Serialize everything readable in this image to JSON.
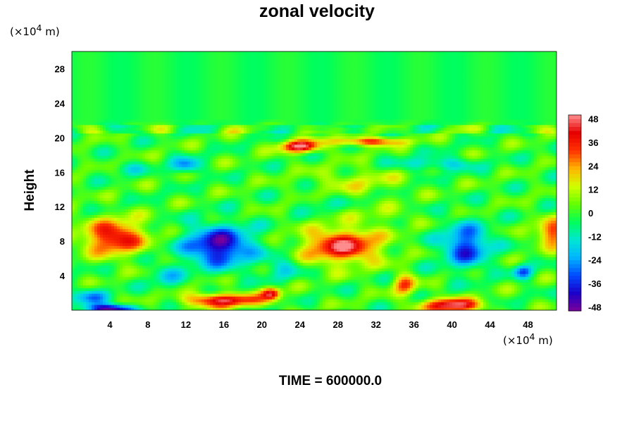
{
  "chart_data": {
    "type": "heatmap",
    "title": "zonal velocity",
    "ylabel": "Height",
    "xunit": "(×10",
    "xunit_exp": "4",
    "xunit_tail": " m)",
    "yunit": "(×10",
    "yunit_exp": "4",
    "yunit_tail": " m)",
    "footer": "TIME = 600000.0",
    "xlim": [
      0,
      51
    ],
    "ylim": [
      0,
      30
    ],
    "x_ticks": [
      4,
      8,
      12,
      16,
      20,
      24,
      28,
      32,
      36,
      40,
      44,
      48
    ],
    "y_ticks": [
      4,
      8,
      12,
      16,
      20,
      24,
      28
    ],
    "colorbar": {
      "range": [
        -50,
        50
      ],
      "ticks": [
        48,
        36,
        24,
        12,
        0,
        -12,
        -24,
        -36,
        -48
      ],
      "colors": [
        "#7b0099",
        "#1c00c8",
        "#004bff",
        "#00b4ff",
        "#00e6d2",
        "#00ff5a",
        "#64ff00",
        "#d2ff00",
        "#ffb400",
        "#ff3200",
        "#e60000",
        "#ff8c8c"
      ]
    },
    "features": [
      {
        "x": 4.5,
        "y": 8.5,
        "value": 42,
        "sx": 3.2,
        "sy": 2.0
      },
      {
        "x": 15.5,
        "y": 7.5,
        "value": -46,
        "sx": 3.5,
        "sy": 2.3
      },
      {
        "x": 28.5,
        "y": 7.5,
        "value": 44,
        "sx": 4.0,
        "sy": 2.0
      },
      {
        "x": 41.5,
        "y": 7.5,
        "value": -36,
        "sx": 2.5,
        "sy": 2.5
      },
      {
        "x": 50.5,
        "y": 9.0,
        "value": 36,
        "sx": 1.5,
        "sy": 1.5
      },
      {
        "x": 16.0,
        "y": 1.2,
        "value": 44,
        "sx": 4.0,
        "sy": 0.8
      },
      {
        "x": 21.0,
        "y": 2.0,
        "value": 40,
        "sx": 1.0,
        "sy": 0.7
      },
      {
        "x": 40.0,
        "y": 0.6,
        "value": 48,
        "sx": 3.0,
        "sy": 0.8
      },
      {
        "x": 4.0,
        "y": 0.2,
        "value": -50,
        "sx": 2.5,
        "sy": 0.5
      },
      {
        "x": 24.0,
        "y": 19.0,
        "value": 48,
        "sx": 2.0,
        "sy": 0.7
      },
      {
        "x": 31.0,
        "y": 19.6,
        "value": 34,
        "sx": 4.0,
        "sy": 0.5
      },
      {
        "x": 12.0,
        "y": 16.8,
        "value": -26,
        "sx": 1.5,
        "sy": 0.9
      },
      {
        "x": 38.5,
        "y": 17.0,
        "value": -18,
        "sx": 4.0,
        "sy": 0.8
      },
      {
        "x": 30.0,
        "y": 15.0,
        "value": 12,
        "sx": 5.0,
        "sy": 1.5
      },
      {
        "x": 6.0,
        "y": 16.5,
        "value": -10,
        "sx": 2.0,
        "sy": 0.8
      },
      {
        "x": 35.0,
        "y": 3.0,
        "value": 30,
        "sx": 1.2,
        "sy": 1.2
      },
      {
        "x": 47.5,
        "y": 4.5,
        "value": -30,
        "sx": 1.0,
        "sy": 0.8
      },
      {
        "x": 22.0,
        "y": 5.0,
        "value": -14,
        "sx": 2.0,
        "sy": 1.5
      },
      {
        "x": 10.0,
        "y": 4.0,
        "value": -16,
        "sx": 1.5,
        "sy": 1.5
      },
      {
        "x": 2.0,
        "y": 1.5,
        "value": -22,
        "sx": 2.0,
        "sy": 1.0
      },
      {
        "x": 33.0,
        "y": 11.0,
        "value": 8,
        "sx": 3.0,
        "sy": 1.0
      },
      {
        "x": 26.0,
        "y": 12.5,
        "value": -8,
        "sx": 2.0,
        "sy": 1.0
      }
    ]
  }
}
